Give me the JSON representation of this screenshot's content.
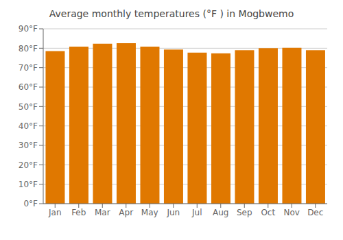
{
  "chart_data": {
    "type": "bar",
    "title": "Average monthly temperatures (°F ) in Mogbwemo",
    "categories": [
      "Jan",
      "Feb",
      "Mar",
      "Apr",
      "May",
      "Jun",
      "Jul",
      "Aug",
      "Sep",
      "Oct",
      "Nov",
      "Dec"
    ],
    "values": [
      78.5,
      80.8,
      82.3,
      82.6,
      80.8,
      79.3,
      77.7,
      77.4,
      79.0,
      80.0,
      80.2,
      79.0
    ],
    "color": "#E07800",
    "ylim": [
      0,
      90
    ],
    "yticks": [
      {
        "value": 0,
        "label": "0°F"
      },
      {
        "value": 10,
        "label": "10°F"
      },
      {
        "value": 20,
        "label": "20°F"
      },
      {
        "value": 30,
        "label": "30°F"
      },
      {
        "value": 40,
        "label": "40°F"
      },
      {
        "value": 50,
        "label": "50°F"
      },
      {
        "value": 60,
        "label": "60°F"
      },
      {
        "value": 70,
        "label": "70°F"
      },
      {
        "value": 80,
        "label": "80°F"
      },
      {
        "value": 90,
        "label": "90°F"
      }
    ],
    "grid": true
  }
}
